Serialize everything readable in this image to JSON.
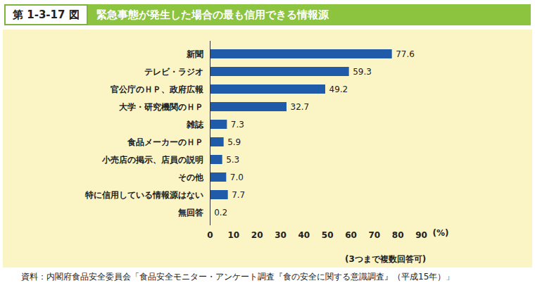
{
  "chart_data": {
    "type": "bar",
    "orientation": "horizontal",
    "figure_number": "第 1-3-17 図",
    "title": "緊急事態が発生した場合の最も信用できる情報源",
    "categories": [
      "新聞",
      "テレビ・ラジオ",
      "官公庁のＨＰ、政府広報",
      "大学・研究機関のＨＰ",
      "雑誌",
      "食品メーカーのＨＰ",
      "小売店の掲示、店員の説明",
      "その他",
      "特に信用している情報源はない",
      "無回答"
    ],
    "values": [
      77.6,
      59.3,
      49.2,
      32.7,
      7.3,
      5.9,
      5.3,
      7.0,
      7.7,
      0.2
    ],
    "value_labels": [
      "77.6",
      "59.3",
      "49.2",
      "32.7",
      "7.3",
      "5.9",
      "5.3",
      "7.0",
      "7.7",
      "0.2"
    ],
    "data_labels": true,
    "color": "#1f5ba8",
    "xlim": [
      0,
      90
    ],
    "xticks": [
      0,
      10,
      20,
      30,
      40,
      50,
      60,
      70,
      80,
      90
    ],
    "x_label": "(%)",
    "note": "(3つまで複数回答可)",
    "source": "資料：内閣府食品安全委員会「食品安全モニター・アンケート調査『食の安全に関する意識調査』（平成15年）」"
  }
}
